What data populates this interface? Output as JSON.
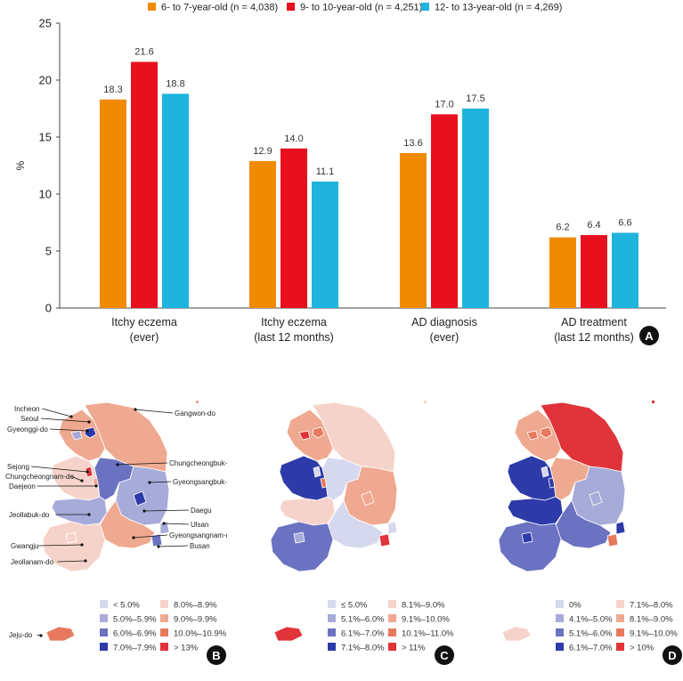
{
  "chart_data": [
    {
      "panel": "A",
      "type": "bar",
      "title": "",
      "xlabel": "",
      "ylabel": "%",
      "ylim": [
        0,
        25
      ],
      "yticks": [
        "0",
        "5",
        "10",
        "15",
        "20",
        "25"
      ],
      "categories": [
        {
          "line1": "Itchy eczema",
          "line2": "(ever)"
        },
        {
          "line1": "Itchy eczema",
          "line2": "(last 12 months)"
        },
        {
          "line1": "AD diagnosis",
          "line2": "(ever)"
        },
        {
          "line1": "AD treatment",
          "line2": "(last 12 months)"
        }
      ],
      "series": [
        {
          "name": "6- to 7-year-old (n = 4,038)",
          "color": "#F08A00",
          "values": [
            18.3,
            12.9,
            13.6,
            6.2
          ],
          "labels": [
            "18.3",
            "12.9",
            "13.6",
            "6.2"
          ]
        },
        {
          "name": "9- to 10-year-old (n = 4,251)",
          "color": "#E8101E",
          "values": [
            21.6,
            14.0,
            17.0,
            6.4
          ],
          "labels": [
            "21.6",
            "14.0",
            "17.0",
            "6.4"
          ]
        },
        {
          "name": "12- to 13-year-old (n = 4,269)",
          "color": "#1FB4DE",
          "values": [
            18.8,
            11.1,
            17.5,
            6.6
          ],
          "labels": [
            "18.8",
            "11.1",
            "17.5",
            "6.6"
          ]
        }
      ]
    }
  ],
  "panels": {
    "A": {
      "letter": "A"
    },
    "B": {
      "letter": "B",
      "region_labels": [
        "Incheon",
        "Seoul",
        "Gyeonggi-do",
        "Gangwon-do",
        "Sejong",
        "Chungcheongnam-do",
        "Daejeon",
        "Chungcheongbuk-do",
        "Gyeongsangbuk-do",
        "Daegu",
        "Jeollabuk-do",
        "Ulsan",
        "Gyeongsangnam-do",
        "Gwangju",
        "Busan",
        "Jeollanam-do",
        "Jeju-do"
      ],
      "legend": [
        {
          "label": "< 5.0%",
          "color": "#D6D9EE"
        },
        {
          "label": "8.0%–8.9%",
          "color": "#F6D3CA"
        },
        {
          "label": "5.0%–5.9%",
          "color": "#A7ABD9"
        },
        {
          "label": "9.0%–9.9%",
          "color": "#EFA990"
        },
        {
          "label": "6.0%–6.9%",
          "color": "#6C72C2"
        },
        {
          "label": "10.0%–10.9%",
          "color": "#E77A5E"
        },
        {
          "label": "7.0%–7.9%",
          "color": "#2D3AA8"
        },
        {
          "label": "> 13%",
          "color": "#E0343A"
        }
      ],
      "fills": {
        "gangwon": "#EFA990",
        "gyeonggi": "#EFA990",
        "seoul": "#2D3AA8",
        "incheon": "#A7ABD9",
        "chungnam": "#F6D3CA",
        "sejong": "#E0343A",
        "daejeon": "#EFA990",
        "chungbuk": "#6C72C2",
        "gyeongbuk": "#A7ABD9",
        "daegu": "#2D3AA8",
        "jeonbuk": "#A7ABD9",
        "jeonnam": "#F6D3CA",
        "gwangju": "#F6D3CA",
        "gyeongnam": "#EFA990",
        "ulsan": "#A7ABD9",
        "busan": "#6C72C2",
        "jeju": "#E77A5E"
      }
    },
    "C": {
      "letter": "C",
      "legend": [
        {
          "label": "≤ 5.0%",
          "color": "#D6D9EE"
        },
        {
          "label": "8.1%–9.0%",
          "color": "#F6D3CA"
        },
        {
          "label": "5.1%–6.0%",
          "color": "#A7ABD9"
        },
        {
          "label": "9.1%–10.0%",
          "color": "#EFA990"
        },
        {
          "label": "6.1%–7.0%",
          "color": "#6C72C2"
        },
        {
          "label": "10.1%–11.0%",
          "color": "#E77A5E"
        },
        {
          "label": "7.1%–8.0%",
          "color": "#2D3AA8"
        },
        {
          "label": "> 11%",
          "color": "#E0343A"
        }
      ],
      "fills": {
        "gangwon": "#F6D3CA",
        "gyeonggi": "#EFA990",
        "seoul": "#E77A5E",
        "incheon": "#E0343A",
        "chungnam": "#2D3AA8",
        "sejong": "#D6D9EE",
        "daejeon": "#E77A5E",
        "chungbuk": "#D6D9EE",
        "gyeongbuk": "#EFA990",
        "daegu": "#EFA990",
        "jeonbuk": "#F6D3CA",
        "jeonnam": "#6C72C2",
        "gwangju": "#A7ABD9",
        "gyeongnam": "#D6D9EE",
        "ulsan": "#D6D9EE",
        "busan": "#E0343A",
        "jeju": "#E0343A"
      }
    },
    "D": {
      "letter": "D",
      "legend": [
        {
          "label": "0%",
          "color": "#D6D9EE"
        },
        {
          "label": "7.1%–8.0%",
          "color": "#F6D3CA"
        },
        {
          "label": "4.1%–5.0%",
          "color": "#A7ABD9"
        },
        {
          "label": "8.1%–9.0%",
          "color": "#EFA990"
        },
        {
          "label": "5.1%–6.0%",
          "color": "#6C72C2"
        },
        {
          "label": "9.1%–10.0%",
          "color": "#E77A5E"
        },
        {
          "label": "6.1%–7.0%",
          "color": "#2D3AA8"
        },
        {
          "label": "> 10%",
          "color": "#E0343A"
        }
      ],
      "fills": {
        "gangwon": "#E0343A",
        "gyeonggi": "#EFA990",
        "seoul": "#E77A5E",
        "incheon": "#E77A5E",
        "chungnam": "#2D3AA8",
        "sejong": "#D6D9EE",
        "daejeon": "#2D3AA8",
        "chungbuk": "#EFA990",
        "gyeongbuk": "#A7ABD9",
        "daegu": "#A7ABD9",
        "jeonbuk": "#2D3AA8",
        "jeonnam": "#6C72C2",
        "gwangju": "#2D3AA8",
        "gyeongnam": "#6C72C2",
        "ulsan": "#2D3AA8",
        "busan": "#E77A5E",
        "jeju": "#F6D3CA"
      }
    }
  }
}
